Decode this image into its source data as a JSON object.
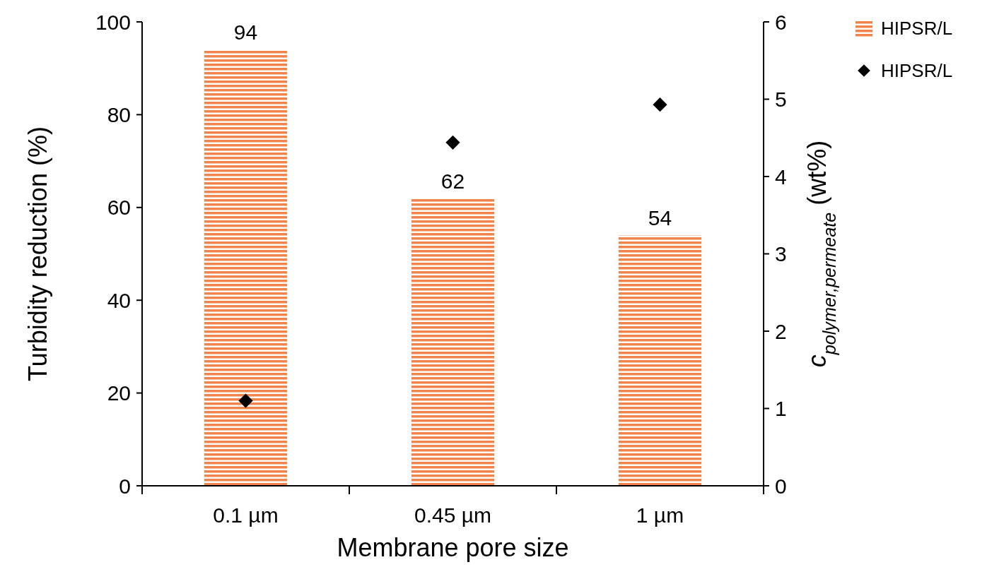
{
  "chart_data": {
    "type": "bar",
    "xlabel": "Membrane pore size",
    "ylabel": "Turbidity reduction (%)",
    "y2label": "c$_{polymer,permeate}$ (wt%)",
    "categories": [
      "0.1 µm",
      "0.45 µm",
      "1 µm"
    ],
    "series": [
      {
        "name": "HIPSR/L",
        "color": "#f0844a",
        "values": [
          94,
          62,
          54
        ],
        "value_labels": [
          "94",
          "62",
          "54"
        ]
      },
      {
        "name": "HIPSR/L",
        "type": "scatter",
        "axis": "y2",
        "color": "#000000",
        "marker": "diamond",
        "values": [
          1.1,
          4.44,
          4.93
        ]
      }
    ],
    "ylim": [
      0,
      100
    ],
    "yticks": [
      0,
      20,
      40,
      60,
      80,
      100
    ],
    "y2lim": [
      0,
      6
    ],
    "y2ticks": [
      0,
      1,
      2,
      3,
      4,
      5,
      6
    ],
    "grid": false,
    "legend": "top right"
  }
}
